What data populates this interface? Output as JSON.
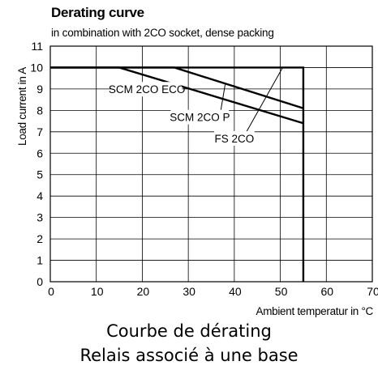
{
  "chart_data": {
    "type": "line",
    "title": "Derating curve",
    "subtitle": "in combination with 2CO socket, dense packing",
    "xlabel": "Ambient temperatur in °C",
    "ylabel": "Load  current in A",
    "xlim": [
      0,
      70
    ],
    "ylim": [
      0,
      11
    ],
    "xticks": [
      0,
      10,
      20,
      30,
      40,
      50,
      60,
      70
    ],
    "yticks": [
      0,
      1,
      2,
      3,
      4,
      5,
      6,
      7,
      8,
      9,
      10,
      11
    ],
    "grid": true,
    "series": [
      {
        "name": "SCM 2CO ECO",
        "x": [
          0,
          15,
          55
        ],
        "y": [
          10,
          10,
          7.4
        ]
      },
      {
        "name": "SCM 2CO P",
        "x": [
          0,
          27,
          55
        ],
        "y": [
          10,
          10,
          8.1
        ]
      },
      {
        "name": "FS 2CO",
        "x": [
          0,
          55,
          55
        ],
        "y": [
          10,
          10,
          0
        ]
      }
    ],
    "annotations": [
      {
        "text": "SCM 2CO ECO",
        "x": 21,
        "y": 8.8,
        "point_x": 25,
        "point_y": 9.3
      },
      {
        "text": "SCM 2CO P",
        "x": 32.5,
        "y": 7.5,
        "point_x": 38,
        "point_y": 9.2
      },
      {
        "text": "FS 2CO",
        "x": 40,
        "y": 6.5,
        "point_x": 50.5,
        "point_y": 10
      }
    ]
  },
  "caption": {
    "line1": "Courbe de dérating",
    "line2": "Relais associé à une base"
  }
}
